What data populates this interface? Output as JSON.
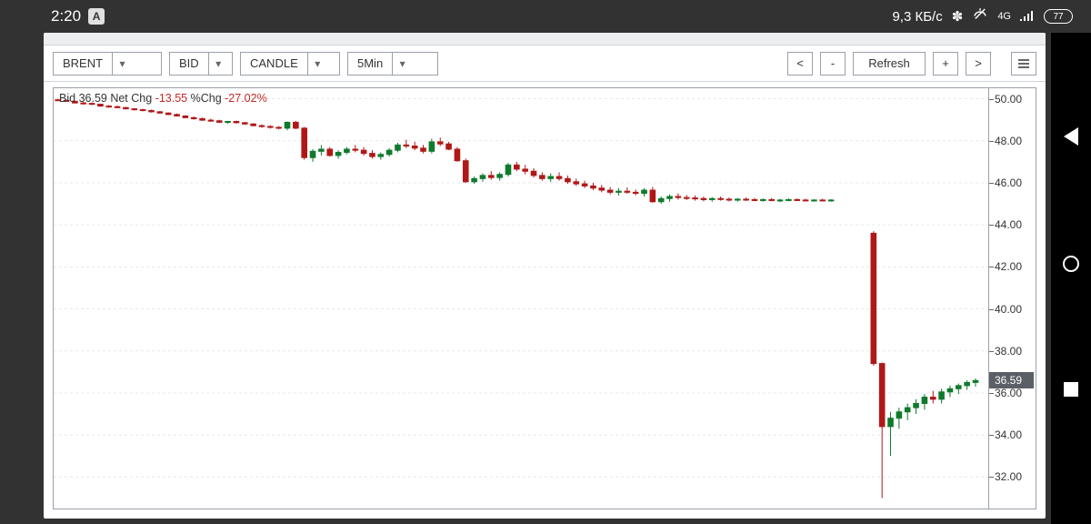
{
  "statusbar": {
    "time": "2:20",
    "app_badge": "A",
    "speed": "9,3 КБ/с",
    "bt_glyph": "✽",
    "mute_glyph": "✕",
    "net_label": "4G",
    "signal_glyph": "📶",
    "battery": "77"
  },
  "toolbar": {
    "symbol": "BRENT",
    "side": "BID",
    "style": "CANDLE",
    "interval": "5Min",
    "prev": "<",
    "minus": "-",
    "refresh": "Refresh",
    "plus": "+",
    "next": ">"
  },
  "info": {
    "label_bid": "Bid",
    "bid": "36.59",
    "label_net": "Net Chg",
    "net": "-13.55",
    "label_pct": "%Chg",
    "pct": "-27.02%"
  },
  "chart": {
    "type": "candle",
    "background": "#ffffff",
    "grid_color": "#e8e9eb",
    "axis_color": "#9aa1a9",
    "up_color": "#0f7a2c",
    "down_color": "#b01818",
    "text_color": "#333333",
    "neg_color": "#c62828",
    "tag_bg": "#5b5f66",
    "font_size": 12,
    "ylim": [
      30.5,
      50.5
    ],
    "yticks": [
      32,
      34,
      36,
      38,
      40,
      42,
      44,
      46,
      48,
      50
    ],
    "current_price": 36.59,
    "xlim": [
      0,
      220
    ],
    "candles": [
      [
        1,
        49.95,
        50.0,
        49.9,
        49.92
      ],
      [
        3,
        49.92,
        49.96,
        49.85,
        49.88
      ],
      [
        5,
        49.88,
        49.9,
        49.78,
        49.8
      ],
      [
        7,
        49.8,
        49.85,
        49.72,
        49.78
      ],
      [
        9,
        49.78,
        49.82,
        49.7,
        49.74
      ],
      [
        11,
        49.74,
        49.76,
        49.62,
        49.65
      ],
      [
        13,
        49.65,
        49.7,
        49.58,
        49.62
      ],
      [
        15,
        49.62,
        49.68,
        49.55,
        49.58
      ],
      [
        17,
        49.58,
        49.62,
        49.5,
        49.52
      ],
      [
        19,
        49.52,
        49.56,
        49.44,
        49.48
      ],
      [
        21,
        49.48,
        49.52,
        49.4,
        49.44
      ],
      [
        23,
        49.44,
        49.48,
        49.34,
        49.38
      ],
      [
        25,
        49.38,
        49.42,
        49.28,
        49.32
      ],
      [
        27,
        49.32,
        49.36,
        49.22,
        49.25
      ],
      [
        29,
        49.25,
        49.3,
        49.15,
        49.18
      ],
      [
        31,
        49.18,
        49.22,
        49.08,
        49.1
      ],
      [
        33,
        49.1,
        49.15,
        49.0,
        49.05
      ],
      [
        35,
        49.05,
        49.1,
        48.95,
        48.98
      ],
      [
        37,
        48.98,
        49.05,
        48.9,
        48.95
      ],
      [
        39,
        48.95,
        49.0,
        48.85,
        48.88
      ],
      [
        41,
        48.88,
        48.95,
        48.8,
        48.92
      ],
      [
        43,
        48.92,
        48.96,
        48.82,
        48.86
      ],
      [
        45,
        48.86,
        48.9,
        48.75,
        48.8
      ],
      [
        47,
        48.8,
        48.84,
        48.68,
        48.72
      ],
      [
        49,
        48.72,
        48.78,
        48.62,
        48.68
      ],
      [
        51,
        48.68,
        48.74,
        48.58,
        48.64
      ],
      [
        53,
        48.64,
        48.7,
        48.54,
        48.6
      ],
      [
        55,
        48.6,
        48.92,
        48.5,
        48.88
      ],
      [
        57,
        48.88,
        48.94,
        48.55,
        48.6
      ],
      [
        59,
        48.6,
        48.66,
        47.1,
        47.2
      ],
      [
        61,
        47.2,
        47.6,
        47.0,
        47.5
      ],
      [
        63,
        47.5,
        47.8,
        47.3,
        47.6
      ],
      [
        65,
        47.6,
        47.7,
        47.25,
        47.3
      ],
      [
        67,
        47.3,
        47.55,
        47.15,
        47.45
      ],
      [
        69,
        47.45,
        47.7,
        47.35,
        47.6
      ],
      [
        71,
        47.6,
        47.8,
        47.45,
        47.55
      ],
      [
        73,
        47.55,
        47.7,
        47.3,
        47.4
      ],
      [
        75,
        47.4,
        47.55,
        47.15,
        47.25
      ],
      [
        77,
        47.25,
        47.45,
        47.1,
        47.35
      ],
      [
        79,
        47.35,
        47.65,
        47.25,
        47.55
      ],
      [
        81,
        47.55,
        47.9,
        47.45,
        47.8
      ],
      [
        83,
        47.8,
        48.05,
        47.65,
        47.75
      ],
      [
        85,
        47.75,
        47.95,
        47.55,
        47.65
      ],
      [
        87,
        47.65,
        47.8,
        47.4,
        47.5
      ],
      [
        89,
        47.5,
        48.1,
        47.4,
        47.95
      ],
      [
        91,
        47.95,
        48.15,
        47.75,
        47.85
      ],
      [
        93,
        47.85,
        47.95,
        47.55,
        47.6
      ],
      [
        95,
        47.6,
        47.7,
        47.0,
        47.05
      ],
      [
        97,
        47.05,
        47.15,
        46.0,
        46.05
      ],
      [
        99,
        46.05,
        46.3,
        45.95,
        46.2
      ],
      [
        101,
        46.2,
        46.45,
        46.05,
        46.35
      ],
      [
        103,
        46.35,
        46.55,
        46.15,
        46.25
      ],
      [
        105,
        46.25,
        46.5,
        46.1,
        46.4
      ],
      [
        107,
        46.4,
        46.95,
        46.3,
        46.85
      ],
      [
        109,
        46.85,
        47.0,
        46.55,
        46.65
      ],
      [
        111,
        46.65,
        46.85,
        46.4,
        46.55
      ],
      [
        113,
        46.55,
        46.7,
        46.25,
        46.35
      ],
      [
        115,
        46.35,
        46.5,
        46.1,
        46.2
      ],
      [
        117,
        46.2,
        46.45,
        46.05,
        46.3
      ],
      [
        119,
        46.3,
        46.5,
        46.1,
        46.2
      ],
      [
        121,
        46.2,
        46.35,
        45.95,
        46.05
      ],
      [
        123,
        46.05,
        46.2,
        45.85,
        45.95
      ],
      [
        125,
        45.95,
        46.1,
        45.75,
        45.85
      ],
      [
        127,
        45.85,
        46.0,
        45.65,
        45.75
      ],
      [
        129,
        45.75,
        45.9,
        45.55,
        45.65
      ],
      [
        131,
        45.65,
        45.8,
        45.45,
        45.55
      ],
      [
        133,
        45.55,
        45.75,
        45.4,
        45.6
      ],
      [
        135,
        45.6,
        45.78,
        45.48,
        45.55
      ],
      [
        137,
        45.55,
        45.68,
        45.4,
        45.5
      ],
      [
        139,
        45.5,
        45.75,
        45.35,
        45.65
      ],
      [
        141,
        45.65,
        45.8,
        45.05,
        45.1
      ],
      [
        143,
        45.1,
        45.35,
        45.0,
        45.25
      ],
      [
        145,
        45.25,
        45.45,
        45.1,
        45.35
      ],
      [
        147,
        45.35,
        45.5,
        45.2,
        45.3
      ],
      [
        149,
        45.3,
        45.42,
        45.18,
        45.28
      ],
      [
        151,
        45.28,
        45.4,
        45.15,
        45.25
      ],
      [
        153,
        45.25,
        45.35,
        45.12,
        45.2
      ],
      [
        155,
        45.2,
        45.32,
        45.1,
        45.25
      ],
      [
        157,
        45.25,
        45.35,
        45.15,
        45.22
      ],
      [
        159,
        45.22,
        45.3,
        45.12,
        45.18
      ],
      [
        161,
        45.18,
        45.28,
        45.1,
        45.22
      ],
      [
        163,
        45.22,
        45.3,
        45.14,
        45.2
      ],
      [
        165,
        45.2,
        45.28,
        45.12,
        45.18
      ],
      [
        167,
        45.18,
        45.26,
        45.1,
        45.2
      ],
      [
        169,
        45.2,
        45.28,
        45.12,
        45.16
      ],
      [
        171,
        45.16,
        45.24,
        45.08,
        45.18
      ],
      [
        173,
        45.18,
        45.26,
        45.12,
        45.2
      ],
      [
        175,
        45.2,
        45.26,
        45.14,
        45.18
      ],
      [
        177,
        45.18,
        45.24,
        45.12,
        45.16
      ],
      [
        179,
        45.16,
        45.22,
        45.1,
        45.18
      ],
      [
        181,
        45.18,
        45.24,
        45.12,
        45.16
      ],
      [
        183,
        45.16,
        45.22,
        45.1,
        45.18
      ],
      [
        193,
        43.6,
        43.7,
        37.3,
        37.4
      ],
      [
        195,
        37.4,
        37.45,
        31.0,
        34.4
      ],
      [
        197,
        34.4,
        35.1,
        33.0,
        34.8
      ],
      [
        199,
        34.8,
        35.3,
        34.3,
        35.1
      ],
      [
        201,
        35.1,
        35.5,
        34.7,
        35.3
      ],
      [
        203,
        35.3,
        35.7,
        35.0,
        35.5
      ],
      [
        205,
        35.5,
        35.95,
        35.2,
        35.8
      ],
      [
        207,
        35.8,
        36.1,
        35.5,
        35.7
      ],
      [
        209,
        35.7,
        36.2,
        35.5,
        36.05
      ],
      [
        211,
        36.05,
        36.35,
        35.8,
        36.2
      ],
      [
        213,
        36.2,
        36.45,
        35.95,
        36.35
      ],
      [
        215,
        36.35,
        36.6,
        36.15,
        36.5
      ],
      [
        217,
        36.5,
        36.7,
        36.3,
        36.59
      ]
    ]
  }
}
